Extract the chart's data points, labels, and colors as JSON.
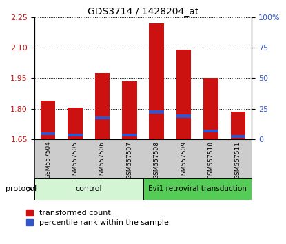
{
  "title": "GDS3714 / 1428204_at",
  "samples": [
    "GSM557504",
    "GSM557505",
    "GSM557506",
    "GSM557507",
    "GSM557508",
    "GSM557509",
    "GSM557510",
    "GSM557511"
  ],
  "bar_tops": [
    1.84,
    1.805,
    1.975,
    1.935,
    2.22,
    2.09,
    1.95,
    1.785
  ],
  "blue_bottoms": [
    1.668,
    1.662,
    1.748,
    1.662,
    1.776,
    1.756,
    1.684,
    1.656
  ],
  "blue_tops": [
    1.682,
    1.676,
    1.762,
    1.676,
    1.79,
    1.77,
    1.698,
    1.668
  ],
  "bar_bottom": 1.65,
  "ylim_left": [
    1.65,
    2.25
  ],
  "yticks_left": [
    1.65,
    1.8,
    1.95,
    2.1,
    2.25
  ],
  "ylim_right": [
    0,
    100
  ],
  "yticks_right": [
    0,
    25,
    50,
    75,
    100
  ],
  "ytick_labels_right": [
    "0",
    "25",
    "50",
    "75",
    "100%"
  ],
  "bar_color": "#cc1111",
  "blue_color": "#3355cc",
  "bar_width": 0.55,
  "control_samples_count": 4,
  "treatment_samples_count": 4,
  "control_label": "control",
  "treatment_label": "Evi1 retroviral transduction",
  "protocol_label": "protocol",
  "legend_red": "transformed count",
  "legend_blue": "percentile rank within the sample",
  "control_color": "#d4f5d4",
  "treatment_color": "#55cc55",
  "label_color_left": "#cc1111",
  "label_color_right": "#3355cc",
  "xticklabel_area_color": "#cccccc",
  "title_fontsize": 10,
  "tick_fontsize": 8,
  "legend_fontsize": 8
}
